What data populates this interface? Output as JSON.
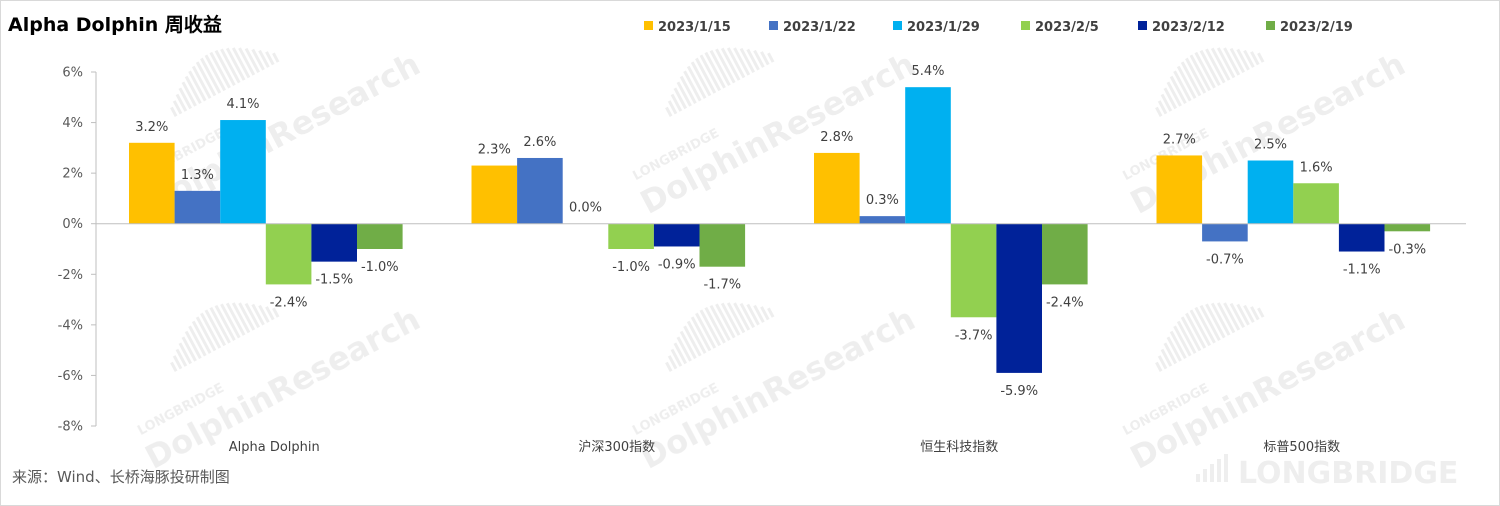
{
  "title": "Alpha Dolphin 周收益",
  "source": "来源：Wind、长桥海豚投研制图",
  "watermark": {
    "small_text": "LONGBRIDGE",
    "big_text": "DolphinResearch",
    "brand_text": "LONGBRIDGE"
  },
  "chart_data": {
    "type": "bar",
    "title": "Alpha Dolphin 周收益",
    "categories": [
      "Alpha Dolphin",
      "沪深300指数",
      "恒生科技指数",
      "标普500指数"
    ],
    "series": [
      {
        "name": "2023/1/15",
        "color": "#FFC000",
        "values": [
          3.2,
          2.3,
          2.8,
          2.7
        ]
      },
      {
        "name": "2023/1/22",
        "color": "#4472C4",
        "values": [
          1.3,
          2.6,
          0.3,
          -0.7
        ]
      },
      {
        "name": "2023/1/29",
        "color": "#00B0F0",
        "values": [
          4.1,
          0.0,
          5.4,
          2.5
        ]
      },
      {
        "name": "2023/2/5",
        "color": "#92D050",
        "values": [
          -2.4,
          -1.0,
          -3.7,
          1.6
        ]
      },
      {
        "name": "2023/2/12",
        "color": "#002299",
        "values": [
          -1.5,
          -0.9,
          -5.9,
          -1.1
        ]
      },
      {
        "name": "2023/2/19",
        "color": "#70AD47",
        "values": [
          -1.0,
          -1.7,
          -2.4,
          -0.3
        ]
      }
    ],
    "y_unit": "%",
    "yticks": [
      6,
      4,
      2,
      0,
      -2,
      -4,
      -6,
      -8
    ],
    "ylim": [
      -8,
      6
    ],
    "legend_position": "top",
    "grid": false,
    "data_labels": true
  }
}
